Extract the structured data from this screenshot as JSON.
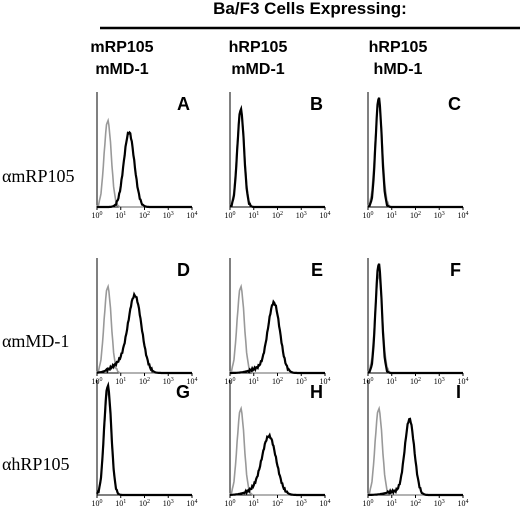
{
  "header": {
    "title": "Ba/F3 Cells Expressing:"
  },
  "columns": [
    {
      "line1": "mRP105",
      "line2": "mMD-1"
    },
    {
      "line1": "hRP105",
      "line2": "mMD-1"
    },
    {
      "line1": "hRP105",
      "line2": "hMD-1"
    }
  ],
  "rows": [
    {
      "label": "αmRP105"
    },
    {
      "label": "αmMD-1"
    },
    {
      "label": "αhRP105"
    }
  ],
  "panels": [
    {
      "letter": "A"
    },
    {
      "letter": "B"
    },
    {
      "letter": "C"
    },
    {
      "letter": "D"
    },
    {
      "letter": "E"
    },
    {
      "letter": "F"
    },
    {
      "letter": "G"
    },
    {
      "letter": "H"
    },
    {
      "letter": "I"
    }
  ],
  "axis_ticks": [
    {
      "base": "10",
      "exp": "0"
    },
    {
      "base": "10",
      "exp": "1"
    },
    {
      "base": "10",
      "exp": "2"
    },
    {
      "base": "10",
      "exp": "3"
    },
    {
      "base": "10",
      "exp": "4"
    }
  ]
}
